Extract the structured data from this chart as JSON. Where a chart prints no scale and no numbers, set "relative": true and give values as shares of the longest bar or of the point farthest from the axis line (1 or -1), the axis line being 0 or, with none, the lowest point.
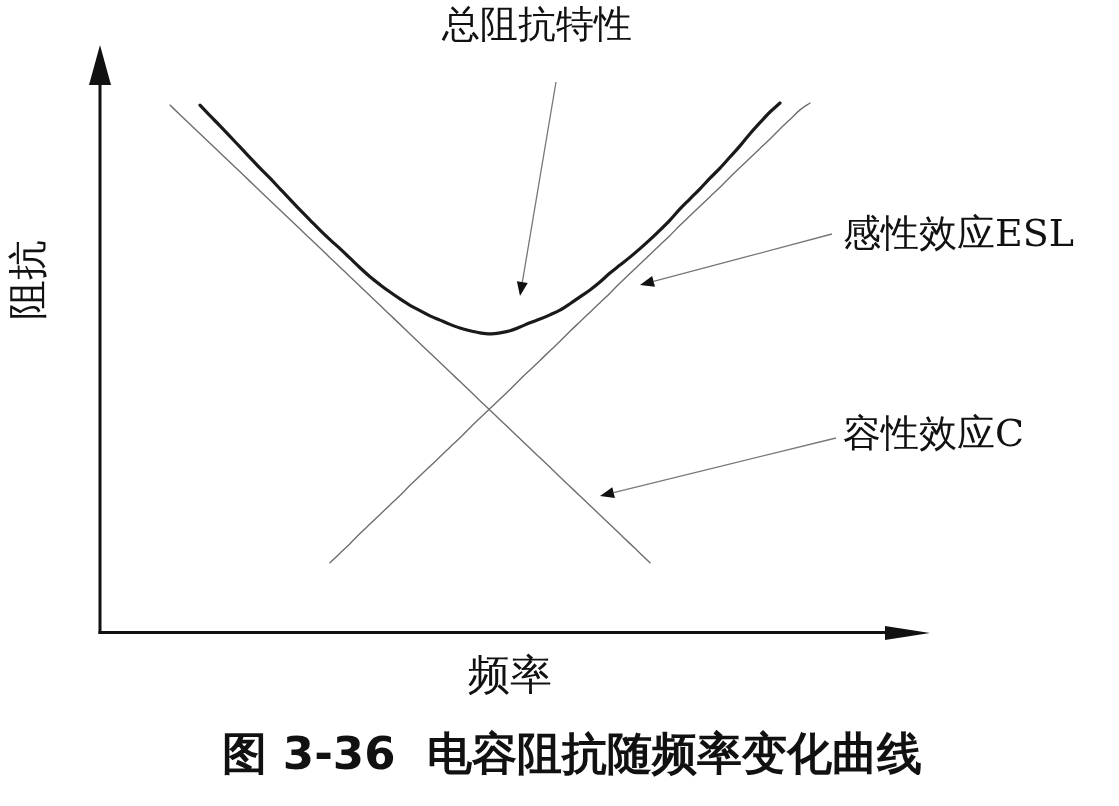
{
  "chart_data": {
    "type": "line",
    "relative": true,
    "title": "图 3-36  电容阻抗随频率变化曲线",
    "xlabel": "频率",
    "ylabel": "阻抗",
    "categories": [
      null,
      null,
      null,
      null,
      null,
      null,
      null,
      null,
      null,
      null,
      null,
      null,
      null,
      null,
      null,
      null,
      null,
      null,
      null,
      null,
      null,
      null,
      null,
      null,
      null,
      null,
      null,
      null,
      null,
      null,
      null,
      null,
      null,
      null,
      null,
      null,
      null,
      null,
      null,
      null,
      null,
      null,
      null,
      null,
      null,
      null,
      null,
      null,
      null,
      null,
      null,
      null,
      null,
      null,
      null,
      null,
      null,
      null,
      null,
      null,
      null,
      null,
      null,
      null,
      null,
      null,
      null,
      null,
      null,
      null,
      null,
      null,
      null,
      null,
      null,
      null,
      null,
      null,
      null,
      null,
      null,
      null,
      null
    ],
    "series": [
      {
        "name": "总阻抗特性",
        "color": "#1a1a1a",
        "values": [
          null,
          null,
          null,
          null,
          null,
          null,
          null,
          null,
          null,
          null,
          0.996,
          0.976,
          0.957,
          0.937,
          0.917,
          0.897,
          0.877,
          0.858,
          0.838,
          0.818,
          0.798,
          0.779,
          0.76,
          0.742,
          0.725,
          0.707,
          0.689,
          0.672,
          0.657,
          0.643,
          0.63,
          0.618,
          0.608,
          0.598,
          0.59,
          0.582,
          0.575,
          0.57,
          0.566,
          0.564,
          0.566,
          0.57,
          0.577,
          0.585,
          0.592,
          0.6,
          0.609,
          0.621,
          0.634,
          0.647,
          0.662,
          0.679,
          0.694,
          0.709,
          0.725,
          0.742,
          0.76,
          0.779,
          0.8,
          0.819,
          0.838,
          0.858,
          0.877,
          0.898,
          0.919,
          0.942,
          0.963,
          0.983,
          1.0,
          null,
          null,
          null,
          null,
          null,
          null,
          null,
          null,
          null,
          null,
          null,
          null,
          null,
          null
        ]
      },
      {
        "name": "感性效应ESL",
        "color": "#6e6e6e",
        "values": [
          null,
          null,
          null,
          null,
          null,
          null,
          null,
          null,
          null,
          null,
          null,
          null,
          null,
          null,
          null,
          null,
          null,
          null,
          null,
          null,
          null,
          null,
          null,
          0.132,
          0.15,
          0.168,
          0.187,
          0.205,
          0.223,
          0.241,
          0.259,
          0.278,
          0.296,
          0.314,
          0.332,
          0.35,
          0.368,
          0.387,
          0.405,
          0.423,
          0.441,
          0.459,
          0.478,
          0.496,
          0.514,
          0.532,
          0.55,
          0.569,
          0.587,
          0.605,
          0.623,
          0.641,
          0.66,
          0.678,
          0.696,
          0.714,
          0.732,
          0.75,
          0.769,
          0.787,
          0.805,
          0.823,
          0.841,
          0.86,
          0.878,
          0.896,
          0.914,
          0.932,
          0.951,
          0.969,
          0.987,
          1.0,
          null,
          null,
          null,
          null,
          null,
          null,
          null,
          null,
          null,
          null,
          null
        ]
      },
      {
        "name": "容性效应C",
        "color": "#6e6e6e",
        "values": [
          null,
          null,
          null,
          null,
          null,
          null,
          null,
          0.996,
          0.978,
          0.96,
          0.942,
          0.924,
          0.906,
          0.888,
          0.87,
          0.852,
          0.834,
          0.816,
          0.798,
          0.78,
          0.762,
          0.744,
          0.726,
          0.708,
          0.69,
          0.672,
          0.654,
          0.636,
          0.618,
          0.6,
          0.582,
          0.564,
          0.546,
          0.528,
          0.51,
          0.492,
          0.474,
          0.456,
          0.438,
          0.42,
          0.402,
          0.384,
          0.366,
          0.348,
          0.33,
          0.312,
          0.294,
          0.276,
          0.258,
          0.24,
          0.222,
          0.204,
          0.186,
          0.168,
          0.15,
          0.132,
          null,
          null,
          null,
          null,
          null,
          null,
          null,
          null,
          null,
          null,
          null,
          null,
          null,
          null,
          null,
          null,
          null,
          null,
          null,
          null,
          null,
          null,
          null,
          null,
          null,
          null,
          null
        ]
      }
    ]
  }
}
